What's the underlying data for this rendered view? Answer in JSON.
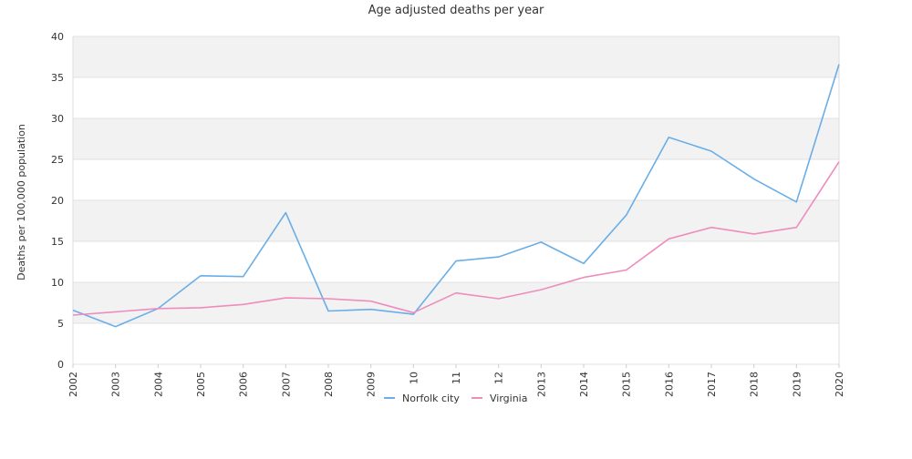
{
  "chart_data": {
    "type": "line",
    "title": "Age adjusted deaths per year",
    "xlabel": "",
    "ylabel": "Deaths per 100,000 population",
    "ylim": [
      0,
      40
    ],
    "yticks": [
      0,
      5,
      10,
      15,
      20,
      25,
      30,
      35,
      40
    ],
    "categories": [
      "2002",
      "2003",
      "2004",
      "2005",
      "2006",
      "2007",
      "2008",
      "2009",
      "10",
      "11",
      "12",
      "2013",
      "2014",
      "2015",
      "2016",
      "2017",
      "2018",
      "2019",
      "2020"
    ],
    "grid": "horizontal alternating bands",
    "legend_position": "bottom",
    "series": [
      {
        "name": "Norfolk city",
        "color": "#6aaee8",
        "values": [
          6.6,
          4.6,
          6.8,
          10.8,
          10.7,
          18.5,
          6.5,
          6.7,
          6.1,
          12.6,
          13.1,
          14.9,
          12.3,
          18.2,
          27.7,
          26.0,
          22.6,
          19.8,
          36.6
        ]
      },
      {
        "name": "Virginia",
        "color": "#ee8cbe",
        "values": [
          6.0,
          6.4,
          6.8,
          6.9,
          7.3,
          8.1,
          8.0,
          7.7,
          6.3,
          8.7,
          8.0,
          9.1,
          10.6,
          11.5,
          15.3,
          16.7,
          15.9,
          16.7,
          24.7
        ]
      }
    ]
  }
}
